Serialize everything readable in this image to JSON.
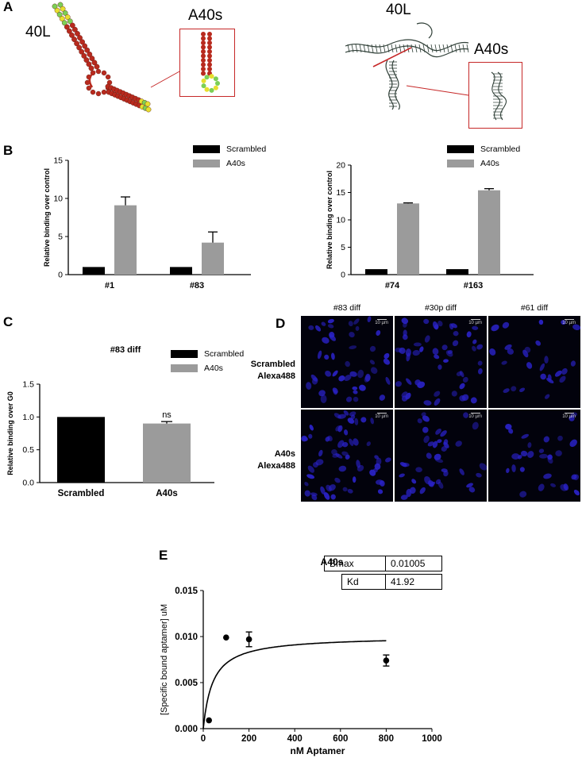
{
  "panels": {
    "A": {
      "letter": "A",
      "left_label": "40L",
      "left_inset_label": "A40s",
      "right_label": "40L",
      "right_inset_label": "A40s"
    },
    "B": {
      "letter": "B"
    },
    "C": {
      "letter": "C"
    },
    "D": {
      "letter": "D",
      "columns": [
        "#83 diff",
        "#30p diff",
        "#61 diff"
      ],
      "rows": [
        {
          "line1": "Scrambled",
          "line2": "Alexa488"
        },
        {
          "line1": "A40s",
          "line2": "Alexa488"
        }
      ],
      "scale_label": "10 µm"
    },
    "E": {
      "letter": "E",
      "table": [
        {
          "param": "Bmax",
          "value": "0.01005"
        },
        {
          "param": "Kd",
          "value": "41.92"
        }
      ]
    }
  },
  "colors": {
    "scrambled": "#000000",
    "a40s": "#9b9b9b",
    "inset_border": "#c62828",
    "rna_red": "#b82a1e",
    "rna_green": "#7ccf55",
    "rna_yellow": "#e7df2e",
    "nuclei": "#2a22c8"
  },
  "chart_data": [
    {
      "id": "B-left",
      "type": "bar",
      "title": "",
      "categories": [
        "#1",
        "#83"
      ],
      "series": [
        {
          "name": "Scrambled",
          "values": [
            1.0,
            1.0
          ],
          "errors": [
            0,
            0
          ]
        },
        {
          "name": "A40s",
          "values": [
            9.1,
            4.2
          ],
          "errors": [
            1.1,
            1.4
          ]
        }
      ],
      "xlabel": "",
      "ylabel": "Relative binding over control",
      "ylim": [
        0,
        15
      ],
      "yticks": [
        0,
        5,
        10,
        15
      ],
      "legend": "top-right"
    },
    {
      "id": "B-right",
      "type": "bar",
      "title": "",
      "categories": [
        "#74",
        "#163"
      ],
      "series": [
        {
          "name": "Scrambled",
          "values": [
            1.0,
            1.0
          ],
          "errors": [
            0,
            0
          ]
        },
        {
          "name": "A40s",
          "values": [
            13.0,
            15.4
          ],
          "errors": [
            0.1,
            0.3
          ]
        }
      ],
      "xlabel": "",
      "ylabel": "Relative binding over control",
      "ylim": [
        0,
        20
      ],
      "yticks": [
        0,
        5,
        10,
        15,
        20
      ],
      "legend": "top-right"
    },
    {
      "id": "C",
      "type": "bar",
      "title": "#83 diff",
      "categories": [
        "Scrambled",
        "A40s"
      ],
      "values": [
        1.0,
        0.9
      ],
      "errors": [
        0,
        0.03
      ],
      "colors": [
        "#000000",
        "#9b9b9b"
      ],
      "series_names": [
        "Scrambled",
        "A40s"
      ],
      "annotation": "ns",
      "xlabel": "",
      "ylabel": "Relative binding over G0",
      "ylim": [
        0,
        1.5
      ],
      "yticks": [
        "0.0",
        "0.5",
        "1.0",
        "1.5"
      ],
      "legend": "top-right"
    },
    {
      "id": "E",
      "type": "scatter",
      "title": "A40s",
      "points": [
        {
          "x": 25,
          "y": 0.0009,
          "err": 0
        },
        {
          "x": 100,
          "y": 0.0099,
          "err": 0
        },
        {
          "x": 200,
          "y": 0.0097,
          "err": 0.0008
        },
        {
          "x": 800,
          "y": 0.0074,
          "err": 0.0006
        }
      ],
      "fit": {
        "model": "one-site specific binding",
        "Bmax": 0.01005,
        "Kd": 41.92
      },
      "xlabel": "nM Aptamer",
      "ylabel": "[Specific bound aptamer] uM",
      "xlim": [
        0,
        1000
      ],
      "ylim": [
        0,
        0.015
      ],
      "xticks": [
        0,
        200,
        400,
        600,
        800,
        1000
      ],
      "yticks": [
        "0.000",
        "0.005",
        "0.010",
        "0.015"
      ]
    }
  ]
}
